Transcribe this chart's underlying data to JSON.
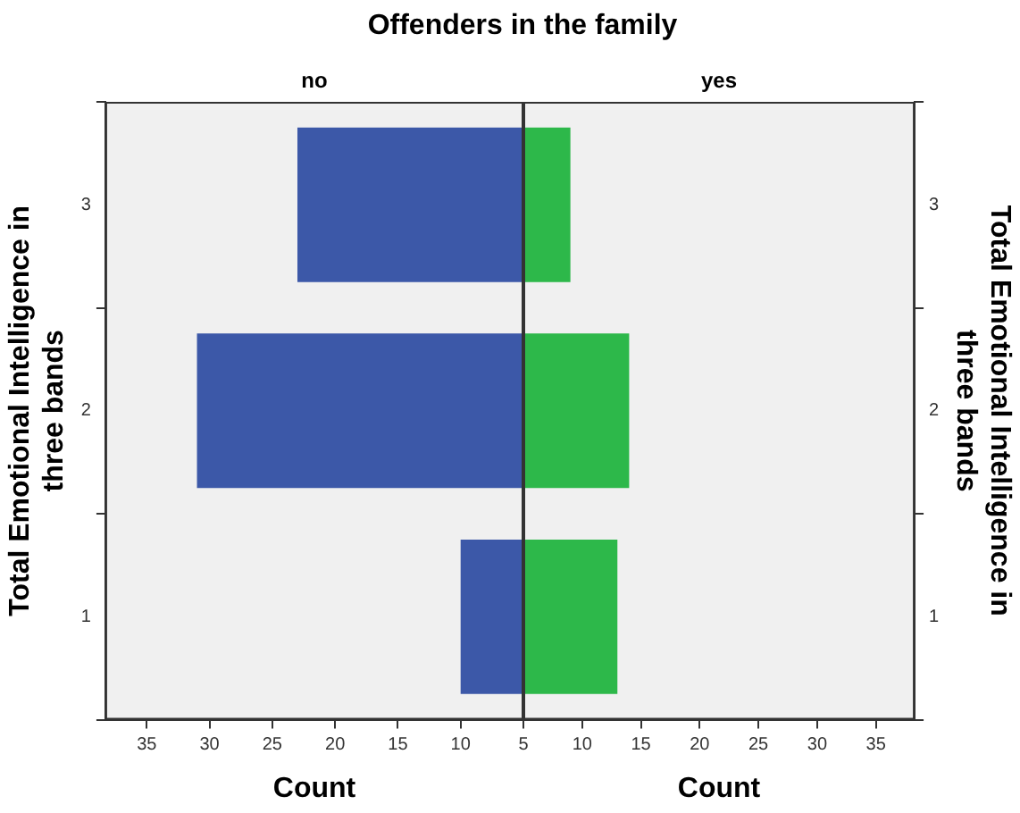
{
  "chart_data": [
    {
      "type": "bar",
      "orientation": "horizontal",
      "title": "Offenders in the family",
      "subtitle": "no",
      "xlabel": "Count",
      "ylabel": "Total Emotional Intelligence in three bands",
      "categories": [
        "3",
        "2",
        "1"
      ],
      "series": [
        {
          "color": "#3c58a8",
          "values": [
            23,
            31,
            10
          ]
        }
      ],
      "xlim": [
        38.3,
        5
      ],
      "xticks": [
        35,
        30,
        25,
        20,
        15,
        10,
        5
      ]
    },
    {
      "type": "bar",
      "orientation": "horizontal",
      "subtitle": "yes",
      "xlabel": "Count",
      "y2label": "Total Emotional Intelligence in three bands",
      "categories": [
        "3",
        "2",
        "1"
      ],
      "series": [
        {
          "color": "#2db84a",
          "values": [
            9,
            14,
            13
          ],
          "axis": "y2"
        }
      ],
      "xlim": [
        5,
        38.3
      ],
      "xticks": [
        10,
        15,
        20,
        25,
        30,
        35
      ]
    }
  ]
}
